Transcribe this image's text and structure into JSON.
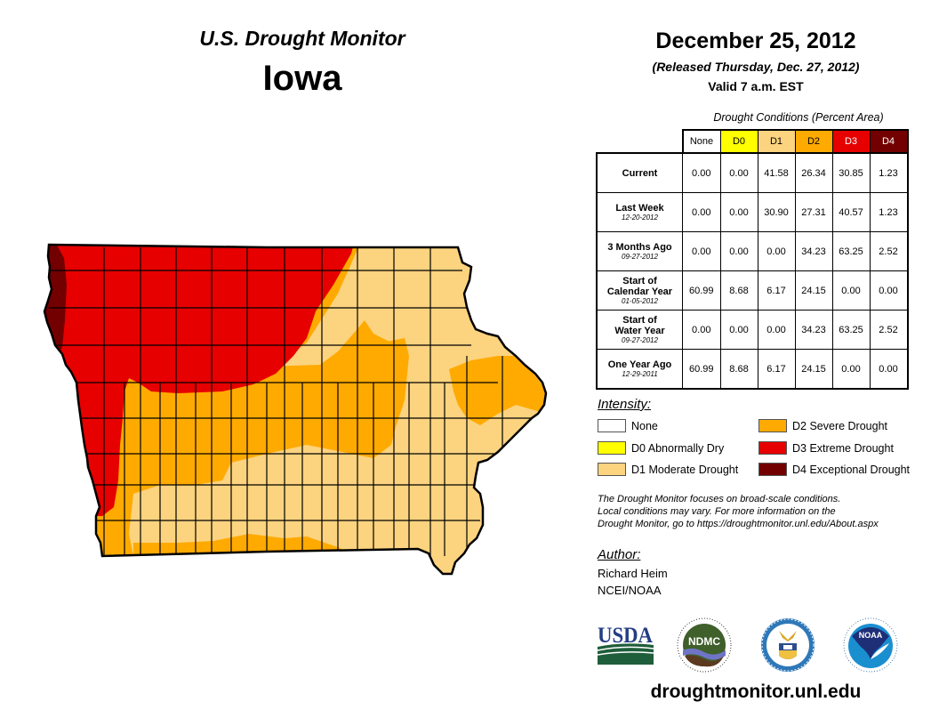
{
  "header": {
    "title": "U.S. Drought Monitor",
    "state": "Iowa",
    "date": "December 25, 2012",
    "released": "(Released Thursday, Dec. 27, 2012)",
    "valid": "Valid 7 a.m. EST"
  },
  "table": {
    "caption": "Drought Conditions (Percent Area)",
    "columns": [
      {
        "label": "None",
        "color": "#ffffff",
        "text_color": "#000000"
      },
      {
        "label": "D0",
        "color": "#ffff00",
        "text_color": "#000000"
      },
      {
        "label": "D1",
        "color": "#fcd37f",
        "text_color": "#000000"
      },
      {
        "label": "D2",
        "color": "#ffaa00",
        "text_color": "#000000"
      },
      {
        "label": "D3",
        "color": "#e60000",
        "text_color": "#ffffff"
      },
      {
        "label": "D4",
        "color": "#730000",
        "text_color": "#ffffff"
      }
    ],
    "rows": [
      {
        "label": "Current",
        "date": "",
        "values": [
          "0.00",
          "0.00",
          "41.58",
          "26.34",
          "30.85",
          "1.23"
        ]
      },
      {
        "label": "Last Week",
        "date": "12-20-2012",
        "values": [
          "0.00",
          "0.00",
          "30.90",
          "27.31",
          "40.57",
          "1.23"
        ]
      },
      {
        "label": "3 Months Ago",
        "date": "09-27-2012",
        "values": [
          "0.00",
          "0.00",
          "0.00",
          "34.23",
          "63.25",
          "2.52"
        ]
      },
      {
        "label": "Start of Calendar Year",
        "date": "01-05-2012",
        "values": [
          "60.99",
          "8.68",
          "6.17",
          "24.15",
          "0.00",
          "0.00"
        ]
      },
      {
        "label": "Start of Water Year",
        "date": "09-27-2012",
        "values": [
          "0.00",
          "0.00",
          "0.00",
          "34.23",
          "63.25",
          "2.52"
        ]
      },
      {
        "label": "One Year Ago",
        "date": "12-29-2011",
        "values": [
          "60.99",
          "8.68",
          "6.17",
          "24.15",
          "0.00",
          "0.00"
        ]
      }
    ]
  },
  "legend": {
    "title": "Intensity:",
    "items": [
      {
        "label": "None",
        "color": "#ffffff"
      },
      {
        "label": "D0 Abnormally Dry",
        "color": "#ffff00"
      },
      {
        "label": "D1 Moderate Drought",
        "color": "#fcd37f"
      },
      {
        "label": "D2 Severe Drought",
        "color": "#ffaa00"
      },
      {
        "label": "D3 Extreme Drought",
        "color": "#e60000"
      },
      {
        "label": "D4 Exceptional Drought",
        "color": "#730000"
      }
    ]
  },
  "disclaimer": {
    "line1": "The Drought Monitor focuses on broad-scale conditions.",
    "line2": "Local conditions may vary. For more information on the",
    "line3": "Drought Monitor, go to https://droughtmonitor.unl.edu/About.aspx"
  },
  "author": {
    "title": "Author:",
    "name": "Richard Heim",
    "org": "NCEI/NOAA"
  },
  "logos": {
    "usda": "USDA",
    "ndmc": "NDMC",
    "noaa": "NOAA"
  },
  "website": "droughtmonitor.unl.edu",
  "map": {
    "region": "Iowa",
    "categories_shown": [
      "D1",
      "D2",
      "D3",
      "D4"
    ]
  }
}
